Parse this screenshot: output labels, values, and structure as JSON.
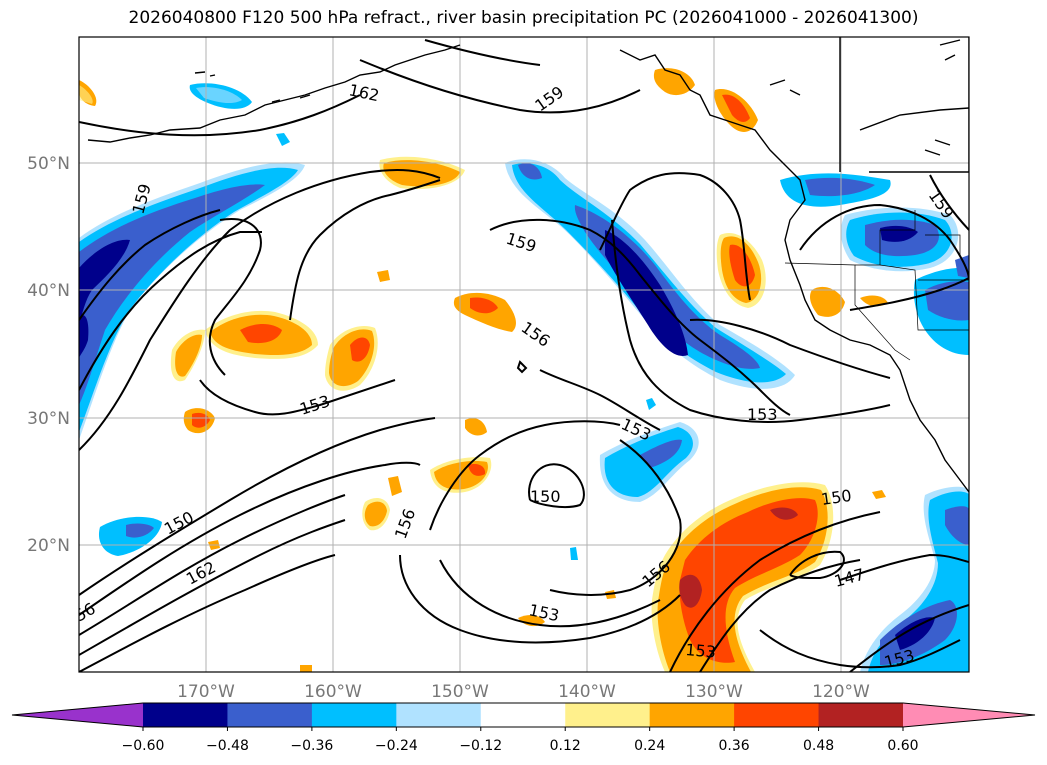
{
  "title": "2026040800 F120 500 hPa refract., river basin precipitation PC (2026041000 - 2026041300)",
  "map": {
    "lat_labels": [
      "50°N",
      "40°N",
      "30°N",
      "20°N"
    ],
    "lon_labels": [
      "170°W",
      "160°W",
      "150°W",
      "140°W",
      "130°W",
      "120°W"
    ],
    "contour_labels": [
      {
        "text": "162",
        "value": 162
      },
      {
        "text": "159",
        "value": 159
      },
      {
        "text": "159",
        "value": 159
      },
      {
        "text": "159",
        "value": 159
      },
      {
        "text": "159",
        "value": 159
      },
      {
        "text": "156",
        "value": 156
      },
      {
        "text": "153",
        "value": 153
      },
      {
        "text": "153",
        "value": 153
      },
      {
        "text": "153",
        "value": 153
      },
      {
        "text": "150",
        "value": 150
      },
      {
        "text": "150",
        "value": 150
      },
      {
        "text": "150",
        "value": 150
      },
      {
        "text": "162",
        "value": 162
      },
      {
        "text": "156",
        "value": 156
      },
      {
        "text": "56",
        "value": 56
      },
      {
        "text": "153",
        "value": 153
      },
      {
        "text": "156",
        "value": 156
      },
      {
        "text": "147",
        "value": 147
      },
      {
        "text": "153",
        "value": 153
      },
      {
        "text": "153",
        "value": 153
      }
    ]
  },
  "colorbar": {
    "colors": [
      "#9932cc",
      "#00008b",
      "#3a5fcd",
      "#00bfff",
      "#b0e2ff",
      "#ffffff",
      "#fff08c",
      "#ffa500",
      "#ff4500",
      "#b22222",
      "#ff8cb4"
    ],
    "tick_labels": [
      "−0.60",
      "−0.48",
      "−0.36",
      "−0.24",
      "−0.12",
      "0.12",
      "0.24",
      "0.36",
      "0.48",
      "0.60"
    ]
  },
  "colors": {
    "negative_strong": "#00008b",
    "negative_mid": "#3a5fcd",
    "negative": "#00bfff",
    "negative_weak": "#b0e2ff",
    "positive_weak": "#fff08c",
    "positive": "#ffa500",
    "positive_mid": "#ff4500",
    "positive_strong": "#b22222"
  }
}
